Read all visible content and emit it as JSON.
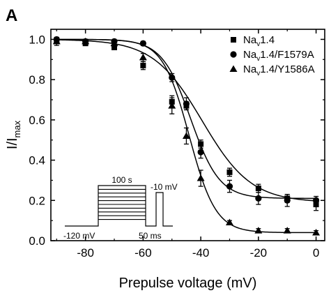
{
  "panel_label": "A",
  "chart_data": {
    "type": "scatter",
    "xlabel": "Prepulse voltage (mV)",
    "ylabel": {
      "main": "I/I",
      "sub": "max"
    },
    "xlim": [
      -92,
      3
    ],
    "ylim": [
      0.0,
      1.05
    ],
    "xticks": [
      -80,
      -60,
      -40,
      -20,
      0
    ],
    "yticks": [
      0.0,
      0.2,
      0.4,
      0.6,
      0.8,
      1.0
    ],
    "xtick_labels": [
      "-80",
      "-60",
      "-40",
      "-20",
      "0"
    ],
    "ytick_labels": [
      "0.0",
      "0.2",
      "0.4",
      "0.6",
      "0.8",
      "1.0"
    ],
    "legend_position": "top-right",
    "series": [
      {
        "name_parts": [
          "Na",
          "v",
          "1.4"
        ],
        "marker": "square",
        "x": [
          -90,
          -80,
          -70,
          -60,
          -50,
          -45,
          -40,
          -30,
          -20,
          -10,
          0
        ],
        "y": [
          0.99,
          0.98,
          0.96,
          0.87,
          0.69,
          0.67,
          0.48,
          0.34,
          0.26,
          0.21,
          0.18
        ],
        "err": [
          0.02,
          0.01,
          0.01,
          0.02,
          0.03,
          0.02,
          0.02,
          0.02,
          0.02,
          0.02,
          0.03
        ],
        "fit": {
          "v_half": -39.5,
          "k": 8.5,
          "bottom": 0.19
        }
      },
      {
        "name_parts": [
          "Na",
          "v",
          "1.4/F1579A"
        ],
        "marker": "circle",
        "x": [
          -90,
          -80,
          -70,
          -60,
          -50,
          -45,
          -40,
          -30,
          -20,
          -10,
          0
        ],
        "y": [
          1.0,
          0.99,
          0.99,
          0.98,
          0.81,
          0.68,
          0.44,
          0.27,
          0.21,
          0.2,
          0.2
        ],
        "err": [
          0.01,
          0.01,
          0.01,
          0.01,
          0.02,
          0.03,
          0.03,
          0.03,
          0.03,
          0.03,
          0.02
        ],
        "fit": {
          "v_half": -43.5,
          "k": 5.0,
          "bottom": 0.21
        }
      },
      {
        "name_parts": [
          "Na",
          "v",
          "1.4/Y1586A"
        ],
        "marker": "triangle",
        "x": [
          -90,
          -80,
          -70,
          -60,
          -50,
          -45,
          -40,
          -30,
          -20,
          -10,
          0
        ],
        "y": [
          0.99,
          0.99,
          0.98,
          0.91,
          0.67,
          0.52,
          0.31,
          0.09,
          0.05,
          0.05,
          0.04
        ],
        "err": [
          0.01,
          0.01,
          0.01,
          0.02,
          0.04,
          0.04,
          0.04,
          0.01,
          0.01,
          0.01,
          0.01
        ],
        "fit": {
          "v_half": -44.0,
          "k": 4.6,
          "bottom": 0.04
        }
      }
    ],
    "inset": {
      "labels": {
        "step_duration": "100 s",
        "test_potential": "-10 mV",
        "holding_potential": "-120 mV",
        "gap_duration": "50 ms"
      },
      "step_count": 10
    }
  }
}
